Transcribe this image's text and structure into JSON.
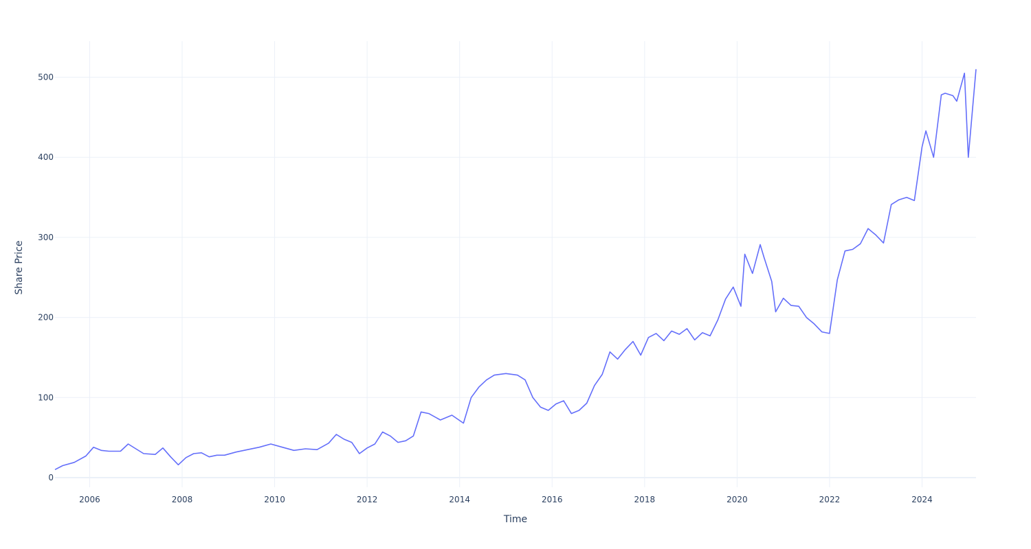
{
  "chart_data": {
    "type": "line",
    "title": "",
    "xlabel": "Time",
    "ylabel": "Share Price",
    "x_tick_labels": [
      "2006",
      "2008",
      "2010",
      "2012",
      "2014",
      "2016",
      "2018",
      "2020",
      "2022",
      "2024"
    ],
    "y_tick_labels": [
      "0",
      "100",
      "200",
      "300",
      "400",
      "500"
    ],
    "xlim": [
      "2005-04",
      "2025-03"
    ],
    "ylim": [
      -12,
      545
    ],
    "grid": true,
    "line_color": "#636efa",
    "grid_color": "#ebf0f8",
    "zero_line_color": "#ebf0f8",
    "series": [
      {
        "x": [
          "2005-04",
          "2005-06",
          "2005-09",
          "2005-12",
          "2006-02",
          "2006-04",
          "2006-06",
          "2006-09",
          "2006-11",
          "2007-01",
          "2007-03",
          "2007-06",
          "2007-08",
          "2007-10",
          "2007-12",
          "2008-02",
          "2008-04",
          "2008-06",
          "2008-08",
          "2008-10",
          "2008-12",
          "2009-03",
          "2009-06",
          "2009-09",
          "2009-12",
          "2010-03",
          "2010-06",
          "2010-09",
          "2010-12",
          "2011-03",
          "2011-05",
          "2011-07",
          "2011-09",
          "2011-11",
          "2012-01",
          "2012-03",
          "2012-05",
          "2012-07",
          "2012-09",
          "2012-11",
          "2013-01",
          "2013-03",
          "2013-05",
          "2013-08",
          "2013-11",
          "2014-02",
          "2014-04",
          "2014-06",
          "2014-08",
          "2014-10",
          "2015-01",
          "2015-04",
          "2015-06",
          "2015-08",
          "2015-10",
          "2015-12",
          "2016-02",
          "2016-04",
          "2016-06",
          "2016-08",
          "2016-10",
          "2016-12",
          "2017-02",
          "2017-04",
          "2017-06",
          "2017-08",
          "2017-10",
          "2017-12",
          "2018-02",
          "2018-04",
          "2018-06",
          "2018-08",
          "2018-10",
          "2018-12",
          "2019-02",
          "2019-04",
          "2019-06",
          "2019-08",
          "2019-10",
          "2019-12",
          "2020-02",
          "2020-03",
          "2020-05",
          "2020-07",
          "2020-08",
          "2020-10",
          "2020-11",
          "2021-01",
          "2021-03",
          "2021-05",
          "2021-07",
          "2021-09",
          "2021-11",
          "2022-01",
          "2022-03",
          "2022-05",
          "2022-07",
          "2022-09",
          "2022-11",
          "2023-01",
          "2023-03",
          "2023-05",
          "2023-07",
          "2023-09",
          "2023-11",
          "2024-01",
          "2024-02",
          "2024-04",
          "2024-06",
          "2024-07",
          "2024-09",
          "2024-10",
          "2024-12",
          "2025-01",
          "2025-03"
        ],
        "y": [
          10,
          15,
          19,
          27,
          38,
          34,
          33,
          33,
          42,
          36,
          30,
          29,
          37,
          26,
          16,
          25,
          30,
          31,
          26,
          28,
          28,
          32,
          35,
          38,
          42,
          38,
          34,
          36,
          35,
          43,
          54,
          48,
          44,
          30,
          37,
          42,
          57,
          52,
          44,
          46,
          52,
          82,
          80,
          72,
          78,
          68,
          100,
          113,
          122,
          128,
          130,
          128,
          122,
          100,
          88,
          84,
          92,
          96,
          80,
          84,
          93,
          115,
          129,
          157,
          148,
          160,
          170,
          153,
          175,
          180,
          171,
          183,
          179,
          186,
          172,
          181,
          177,
          197,
          223,
          238,
          214,
          279,
          255,
          291,
          275,
          245,
          207,
          224,
          215,
          214,
          200,
          192,
          182,
          180,
          247,
          283,
          285,
          292,
          311,
          303,
          293,
          341,
          347,
          350,
          346,
          413,
          433,
          400,
          478,
          480,
          477,
          470,
          505,
          400,
          510
        ]
      }
    ]
  }
}
